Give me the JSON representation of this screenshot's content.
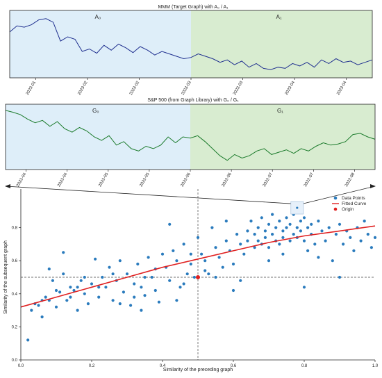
{
  "chart_data": [
    {
      "type": "line",
      "title": "MMM (Target Graph) with A₀ / A₁",
      "x_ticks": [
        "2023-01",
        "2023-02",
        "2023-02",
        "2023-03",
        "2023-03",
        "2023-04",
        "2023-04"
      ],
      "regions": [
        {
          "name": "A₀",
          "color": "#deeef9",
          "x_start": 0.0,
          "x_end": 0.5
        },
        {
          "name": "A₁",
          "color": "#d8ecd0",
          "x_start": 0.5,
          "x_end": 1.0
        }
      ],
      "series": [
        {
          "color": "#1f2f8f",
          "x": [
            0,
            0.02,
            0.04,
            0.06,
            0.08,
            0.1,
            0.12,
            0.14,
            0.16,
            0.18,
            0.2,
            0.22,
            0.24,
            0.26,
            0.28,
            0.3,
            0.32,
            0.34,
            0.36,
            0.38,
            0.4,
            0.42,
            0.44,
            0.46,
            0.48,
            0.5,
            0.52,
            0.54,
            0.56,
            0.58,
            0.6,
            0.62,
            0.64,
            0.66,
            0.68,
            0.7,
            0.72,
            0.74,
            0.76,
            0.78,
            0.8,
            0.82,
            0.84,
            0.86,
            0.88,
            0.9,
            0.92,
            0.94,
            0.96,
            0.98,
            1.0
          ],
          "y": [
            0.7,
            0.8,
            0.78,
            0.82,
            0.9,
            0.92,
            0.86,
            0.55,
            0.62,
            0.58,
            0.38,
            0.42,
            0.35,
            0.48,
            0.4,
            0.5,
            0.44,
            0.36,
            0.46,
            0.4,
            0.32,
            0.38,
            0.34,
            0.3,
            0.26,
            0.28,
            0.34,
            0.3,
            0.26,
            0.2,
            0.24,
            0.16,
            0.22,
            0.12,
            0.18,
            0.1,
            0.08,
            0.12,
            0.1,
            0.18,
            0.14,
            0.2,
            0.12,
            0.24,
            0.18,
            0.26,
            0.2,
            0.22,
            0.16,
            0.2,
            0.24
          ]
        }
      ]
    },
    {
      "type": "line",
      "title": "S&P 500 (from Graph Library) with G₀ / G₁",
      "x_ticks": [
        "2022-04",
        "2022-04",
        "2022-05",
        "2022-05",
        "2022-06",
        "2022-06",
        "2022-07",
        "2022-07",
        "2022-08"
      ],
      "regions": [
        {
          "name": "G₀",
          "color": "#deeef9",
          "x_start": 0.0,
          "x_end": 0.5
        },
        {
          "name": "G₁",
          "color": "#d8ecd0",
          "x_start": 0.5,
          "x_end": 1.0
        }
      ],
      "series": [
        {
          "color": "#1a7a2a",
          "x": [
            0,
            0.02,
            0.04,
            0.06,
            0.08,
            0.1,
            0.12,
            0.14,
            0.16,
            0.18,
            0.2,
            0.22,
            0.24,
            0.26,
            0.28,
            0.3,
            0.32,
            0.34,
            0.36,
            0.38,
            0.4,
            0.42,
            0.44,
            0.46,
            0.48,
            0.5,
            0.52,
            0.54,
            0.56,
            0.58,
            0.6,
            0.62,
            0.64,
            0.66,
            0.68,
            0.7,
            0.72,
            0.74,
            0.76,
            0.78,
            0.8,
            0.82,
            0.84,
            0.86,
            0.88,
            0.9,
            0.92,
            0.94,
            0.96,
            0.98,
            1.0
          ],
          "y": [
            0.95,
            0.92,
            0.88,
            0.8,
            0.74,
            0.78,
            0.68,
            0.76,
            0.64,
            0.58,
            0.66,
            0.6,
            0.5,
            0.44,
            0.52,
            0.36,
            0.42,
            0.3,
            0.26,
            0.34,
            0.3,
            0.36,
            0.5,
            0.4,
            0.5,
            0.48,
            0.52,
            0.42,
            0.3,
            0.18,
            0.1,
            0.2,
            0.14,
            0.18,
            0.26,
            0.3,
            0.2,
            0.24,
            0.28,
            0.22,
            0.3,
            0.26,
            0.34,
            0.4,
            0.36,
            0.38,
            0.42,
            0.54,
            0.56,
            0.5,
            0.46
          ]
        }
      ]
    },
    {
      "type": "scatter",
      "xlabel": "Similarity of the preceding graph",
      "ylabel": "Similarity of the subsequent graph",
      "xlim": [
        0,
        1
      ],
      "ylim": [
        0,
        1
      ],
      "x_ticks": [
        "0.0",
        "0.2",
        "0.4",
        "0.6",
        "0.8",
        "1.0"
      ],
      "y_ticks": [
        "0.0",
        "0.2",
        "0.4",
        "0.6",
        "0.8"
      ],
      "reference_lines": {
        "x": 0.5,
        "y": 0.5
      },
      "legend": [
        {
          "label": "Data Points",
          "color": "#2a7bbd"
        },
        {
          "label": "Fitted Curve",
          "color": "#e02020"
        },
        {
          "label": "Origin",
          "color": "#e02020"
        }
      ],
      "legend_position": "top-right",
      "fitted_curve": {
        "x": [
          0,
          0.1,
          0.2,
          0.3,
          0.4,
          0.5,
          0.6,
          0.7,
          0.8,
          0.9,
          1.0
        ],
        "y": [
          0.32,
          0.38,
          0.44,
          0.5,
          0.56,
          0.61,
          0.66,
          0.71,
          0.75,
          0.78,
          0.81
        ]
      },
      "origin": {
        "x": 0.5,
        "y": 0.5
      },
      "highlight_point": {
        "x": 0.78,
        "y": 0.92
      },
      "points": [
        {
          "x": 0.02,
          "y": 0.12
        },
        {
          "x": 0.03,
          "y": 0.3
        },
        {
          "x": 0.04,
          "y": 0.34
        },
        {
          "x": 0.05,
          "y": 0.33
        },
        {
          "x": 0.06,
          "y": 0.26
        },
        {
          "x": 0.07,
          "y": 0.38
        },
        {
          "x": 0.08,
          "y": 0.36
        },
        {
          "x": 0.08,
          "y": 0.55
        },
        {
          "x": 0.09,
          "y": 0.48
        },
        {
          "x": 0.1,
          "y": 0.32
        },
        {
          "x": 0.11,
          "y": 0.41
        },
        {
          "x": 0.12,
          "y": 0.52
        },
        {
          "x": 0.12,
          "y": 0.65
        },
        {
          "x": 0.13,
          "y": 0.36
        },
        {
          "x": 0.14,
          "y": 0.44
        },
        {
          "x": 0.15,
          "y": 0.42
        },
        {
          "x": 0.16,
          "y": 0.3
        },
        {
          "x": 0.17,
          "y": 0.48
        },
        {
          "x": 0.18,
          "y": 0.4
        },
        {
          "x": 0.19,
          "y": 0.34
        },
        {
          "x": 0.2,
          "y": 0.46
        },
        {
          "x": 0.21,
          "y": 0.61
        },
        {
          "x": 0.22,
          "y": 0.38
        },
        {
          "x": 0.23,
          "y": 0.5
        },
        {
          "x": 0.24,
          "y": 0.44
        },
        {
          "x": 0.25,
          "y": 0.56
        },
        {
          "x": 0.26,
          "y": 0.36
        },
        {
          "x": 0.27,
          "y": 0.48
        },
        {
          "x": 0.28,
          "y": 0.6
        },
        {
          "x": 0.29,
          "y": 0.41
        },
        {
          "x": 0.3,
          "y": 0.52
        },
        {
          "x": 0.31,
          "y": 0.33
        },
        {
          "x": 0.32,
          "y": 0.46
        },
        {
          "x": 0.33,
          "y": 0.58
        },
        {
          "x": 0.34,
          "y": 0.44
        },
        {
          "x": 0.35,
          "y": 0.39
        },
        {
          "x": 0.36,
          "y": 0.62
        },
        {
          "x": 0.37,
          "y": 0.5
        },
        {
          "x": 0.38,
          "y": 0.55
        },
        {
          "x": 0.39,
          "y": 0.35
        },
        {
          "x": 0.4,
          "y": 0.64
        },
        {
          "x": 0.41,
          "y": 0.56
        },
        {
          "x": 0.42,
          "y": 0.82
        },
        {
          "x": 0.42,
          "y": 0.48
        },
        {
          "x": 0.43,
          "y": 0.66
        },
        {
          "x": 0.44,
          "y": 0.6
        },
        {
          "x": 0.45,
          "y": 0.44
        },
        {
          "x": 0.46,
          "y": 0.7
        },
        {
          "x": 0.47,
          "y": 0.52
        },
        {
          "x": 0.48,
          "y": 0.58
        },
        {
          "x": 0.49,
          "y": 0.5
        },
        {
          "x": 0.5,
          "y": 0.74
        },
        {
          "x": 0.51,
          "y": 0.64
        },
        {
          "x": 0.52,
          "y": 0.54
        },
        {
          "x": 0.53,
          "y": 0.52
        },
        {
          "x": 0.54,
          "y": 0.8
        },
        {
          "x": 0.55,
          "y": 0.68
        },
        {
          "x": 0.56,
          "y": 0.62
        },
        {
          "x": 0.57,
          "y": 0.56
        },
        {
          "x": 0.58,
          "y": 0.72
        },
        {
          "x": 0.59,
          "y": 0.66
        },
        {
          "x": 0.6,
          "y": 0.58
        },
        {
          "x": 0.61,
          "y": 0.76
        },
        {
          "x": 0.62,
          "y": 0.7
        },
        {
          "x": 0.63,
          "y": 0.64
        },
        {
          "x": 0.64,
          "y": 0.78
        },
        {
          "x": 0.64,
          "y": 0.72
        },
        {
          "x": 0.65,
          "y": 0.84
        },
        {
          "x": 0.66,
          "y": 0.68
        },
        {
          "x": 0.66,
          "y": 0.76
        },
        {
          "x": 0.67,
          "y": 0.8
        },
        {
          "x": 0.67,
          "y": 0.72
        },
        {
          "x": 0.68,
          "y": 0.86
        },
        {
          "x": 0.68,
          "y": 0.7
        },
        {
          "x": 0.69,
          "y": 0.78
        },
        {
          "x": 0.69,
          "y": 0.74
        },
        {
          "x": 0.7,
          "y": 0.82
        },
        {
          "x": 0.7,
          "y": 0.68
        },
        {
          "x": 0.71,
          "y": 0.76
        },
        {
          "x": 0.71,
          "y": 0.88
        },
        {
          "x": 0.72,
          "y": 0.72
        },
        {
          "x": 0.72,
          "y": 0.8
        },
        {
          "x": 0.73,
          "y": 0.84
        },
        {
          "x": 0.73,
          "y": 0.7
        },
        {
          "x": 0.74,
          "y": 0.78
        },
        {
          "x": 0.74,
          "y": 0.74
        },
        {
          "x": 0.75,
          "y": 0.86
        },
        {
          "x": 0.75,
          "y": 0.8
        },
        {
          "x": 0.76,
          "y": 0.72
        },
        {
          "x": 0.76,
          "y": 0.82
        },
        {
          "x": 0.77,
          "y": 0.76
        },
        {
          "x": 0.77,
          "y": 0.88
        },
        {
          "x": 0.78,
          "y": 0.8
        },
        {
          "x": 0.78,
          "y": 0.74
        },
        {
          "x": 0.79,
          "y": 0.84
        },
        {
          "x": 0.79,
          "y": 0.78
        },
        {
          "x": 0.8,
          "y": 0.72
        },
        {
          "x": 0.8,
          "y": 0.86
        },
        {
          "x": 0.81,
          "y": 0.8
        },
        {
          "x": 0.81,
          "y": 0.66
        },
        {
          "x": 0.82,
          "y": 0.82
        },
        {
          "x": 0.82,
          "y": 0.76
        },
        {
          "x": 0.83,
          "y": 0.7
        },
        {
          "x": 0.84,
          "y": 0.84
        },
        {
          "x": 0.85,
          "y": 0.78
        },
        {
          "x": 0.86,
          "y": 0.72
        },
        {
          "x": 0.87,
          "y": 0.8
        },
        {
          "x": 0.88,
          "y": 0.6
        },
        {
          "x": 0.89,
          "y": 0.76
        },
        {
          "x": 0.9,
          "y": 0.82
        },
        {
          "x": 0.91,
          "y": 0.7
        },
        {
          "x": 0.92,
          "y": 0.78
        },
        {
          "x": 0.93,
          "y": 0.74
        },
        {
          "x": 0.94,
          "y": 0.66
        },
        {
          "x": 0.95,
          "y": 0.8
        },
        {
          "x": 0.96,
          "y": 0.72
        },
        {
          "x": 0.97,
          "y": 0.84
        },
        {
          "x": 0.98,
          "y": 0.76
        },
        {
          "x": 0.99,
          "y": 0.68
        },
        {
          "x": 1.0,
          "y": 0.74
        },
        {
          "x": 0.6,
          "y": 0.42
        },
        {
          "x": 0.62,
          "y": 0.48
        },
        {
          "x": 0.7,
          "y": 0.6
        },
        {
          "x": 0.74,
          "y": 0.64
        },
        {
          "x": 0.8,
          "y": 0.44
        },
        {
          "x": 0.84,
          "y": 0.62
        },
        {
          "x": 0.9,
          "y": 0.5
        },
        {
          "x": 0.55,
          "y": 0.5
        },
        {
          "x": 0.52,
          "y": 0.6
        },
        {
          "x": 0.58,
          "y": 0.84
        },
        {
          "x": 0.44,
          "y": 0.36
        },
        {
          "x": 0.38,
          "y": 0.42
        },
        {
          "x": 0.32,
          "y": 0.38
        },
        {
          "x": 0.26,
          "y": 0.52
        },
        {
          "x": 0.16,
          "y": 0.44
        },
        {
          "x": 0.14,
          "y": 0.38
        },
        {
          "x": 0.1,
          "y": 0.42
        },
        {
          "x": 0.06,
          "y": 0.36
        },
        {
          "x": 0.35,
          "y": 0.5
        },
        {
          "x": 0.46,
          "y": 0.46
        },
        {
          "x": 0.48,
          "y": 0.64
        },
        {
          "x": 0.22,
          "y": 0.44
        },
        {
          "x": 0.18,
          "y": 0.5
        },
        {
          "x": 0.28,
          "y": 0.34
        },
        {
          "x": 0.34,
          "y": 0.3
        }
      ]
    }
  ]
}
